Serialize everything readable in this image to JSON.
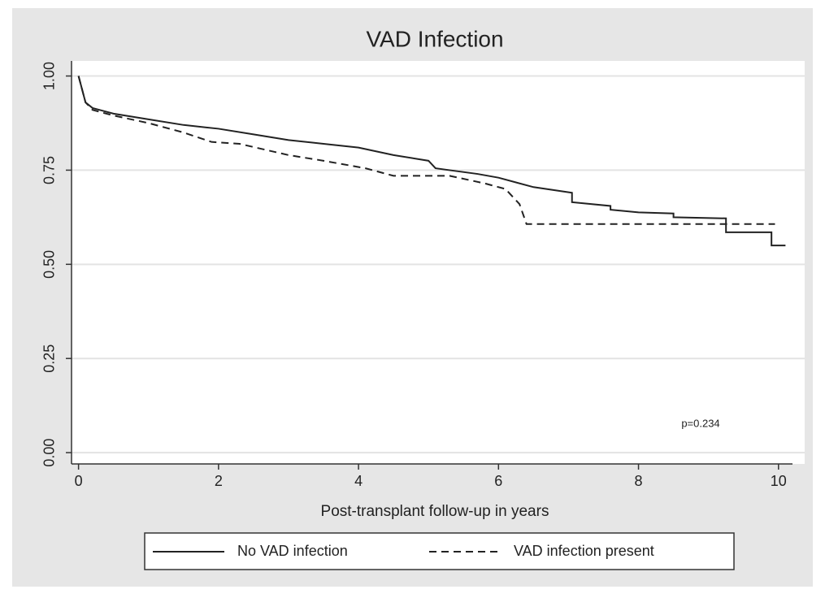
{
  "chart_data": {
    "type": "line",
    "title": "VAD Infection",
    "x_label": "Post-transplant follow-up in years",
    "annotation": "p=0.234",
    "xlim": [
      -0.1,
      10.2
    ],
    "xticks": [
      0,
      2,
      4,
      6,
      8,
      10
    ],
    "ylim": [
      -0.03,
      1.04
    ],
    "yticks": [
      {
        "value": 0,
        "label": "0.00"
      },
      {
        "value": 0.25,
        "label": "0.25"
      },
      {
        "value": 0.5,
        "label": "0.50"
      },
      {
        "value": 0.75,
        "label": "0.75"
      },
      {
        "value": 1,
        "label": "1.00"
      }
    ],
    "grid": true,
    "legend": "bottom",
    "series": [
      {
        "name": "No VAD infection",
        "color": "#222222",
        "line_style": "solid",
        "x": [
          0,
          0.1,
          0.2,
          0.5,
          1,
          1.5,
          2,
          2.5,
          3,
          3.5,
          4,
          4.5,
          5,
          5.1,
          5.3,
          5.7,
          6,
          6.5,
          7.05,
          7.05,
          7.6,
          7.6,
          8,
          8.5,
          8.5,
          9.25,
          9.25,
          9.9,
          9.9,
          10.1
        ],
        "values": [
          1,
          0.93,
          0.915,
          0.9,
          0.885,
          0.87,
          0.86,
          0.845,
          0.83,
          0.82,
          0.81,
          0.79,
          0.775,
          0.755,
          0.75,
          0.74,
          0.73,
          0.705,
          0.69,
          0.665,
          0.655,
          0.645,
          0.638,
          0.635,
          0.625,
          0.622,
          0.585,
          0.585,
          0.55,
          0.55
        ]
      },
      {
        "name": "VAD infection present",
        "color": "#222222",
        "line_style": "dashed",
        "x": [
          0,
          0.1,
          0.2,
          0.5,
          1,
          1.5,
          1.9,
          2.3,
          3,
          3.5,
          4.1,
          4.5,
          5.3,
          5.8,
          6.1,
          6.3,
          6.4,
          9.95
        ],
        "values": [
          1,
          0.93,
          0.91,
          0.895,
          0.875,
          0.85,
          0.825,
          0.82,
          0.79,
          0.775,
          0.755,
          0.735,
          0.735,
          0.715,
          0.7,
          0.66,
          0.607,
          0.607
        ]
      }
    ]
  }
}
